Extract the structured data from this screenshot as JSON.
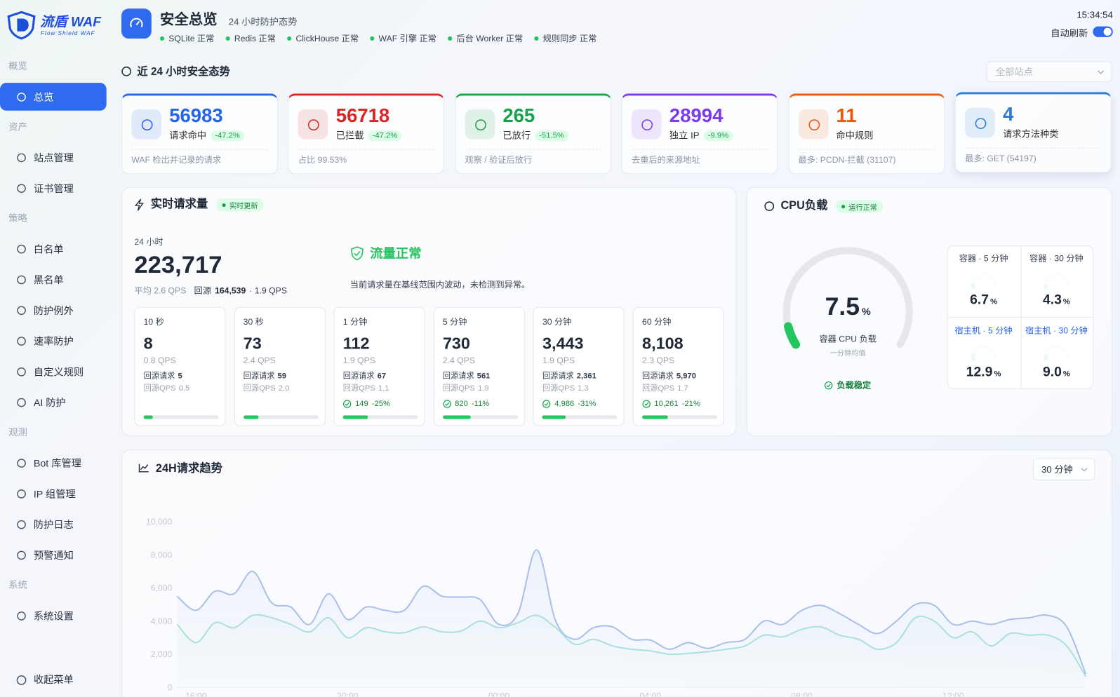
{
  "sidebar": {
    "brand": "流盾 WAF",
    "tagline": "Flow Shield WAF",
    "groups": [
      {
        "title": "概览",
        "items": [
          "总览"
        ]
      },
      {
        "title": "资产",
        "items": [
          "站点管理",
          "证书管理"
        ]
      },
      {
        "title": "策略",
        "items": [
          "白名单",
          "黑名单",
          "防护例外",
          "速率防护",
          "自定义规则",
          "AI 防护"
        ]
      },
      {
        "title": "观测",
        "items": [
          "Bot 库管理",
          "IP 组管理",
          "防护日志",
          "预警通知"
        ]
      },
      {
        "title": "系统",
        "items": [
          "系统设置"
        ]
      }
    ],
    "collapse": "收起菜单"
  },
  "header": {
    "title": "安全总览",
    "subtitle": "24 小时防护态势",
    "services": [
      "SQLite 正常",
      "Redis 正常",
      "ClickHouse 正常",
      "WAF 引擎 正常",
      "后台 Worker 正常",
      "规则同步 正常"
    ],
    "time": "15:34:54",
    "auto_refresh": "自动刷新"
  },
  "overview": {
    "title": "近 24 小时安全态势",
    "site_select": "全部站点",
    "cards": [
      {
        "value": 56983,
        "label": "请求命中",
        "change": "-47.2%",
        "note": "WAF 检出并记录的请求",
        "color": "#2563eb"
      },
      {
        "value": 56718,
        "label": "已拦截",
        "change": "-47.2%",
        "note": "占比 99.53%",
        "color": "#dc2626"
      },
      {
        "value": 265,
        "label": "已放行",
        "change": "-51.5%",
        "note": "观察 / 验证后放行",
        "color": "#16a34a"
      },
      {
        "value": 28994,
        "label": "独立 IP",
        "change": "-9.9%",
        "note": "去重后的来源地址",
        "color": "#7c3aed"
      },
      {
        "value": 11,
        "label": "命中规则",
        "note": "最多: PCDN-拦截 (31107)",
        "color": "#ea580c"
      },
      {
        "value": 4,
        "label": "请求方法种类",
        "note": "最多: GET (54197)",
        "color": "#2b7bd6"
      }
    ]
  },
  "realtime": {
    "title": "实时请求量",
    "badge": "实时更新",
    "period": "24 小时",
    "total": "223,717",
    "avg": "平均 2.6 QPS",
    "origin_label": "回源",
    "origin": "164,539",
    "origin_qps": "· 1.9 QPS",
    "status": "流量正常",
    "status_desc": "当前请求量在基线范围内波动，未检测到异常。",
    "windows": [
      {
        "label": "10 秒",
        "value": "8",
        "qps": "0.8 QPS",
        "origin_label": "回源请求",
        "origin": "5",
        "origin_qps_label": "回源QPS",
        "origin_qps": "0.5",
        "progress": 12
      },
      {
        "label": "30 秒",
        "value": "73",
        "qps": "2.4 QPS",
        "origin_label": "回源请求",
        "origin": "59",
        "origin_qps_label": "回源QPS",
        "origin_qps": "2.0",
        "progress": 20
      },
      {
        "label": "1 分钟",
        "value": "112",
        "qps": "1.9 QPS",
        "origin_label": "回源请求",
        "origin": "67",
        "origin_qps_label": "回源QPS",
        "origin_qps": "1.1",
        "ok": "149",
        "ok_change": "-25%",
        "progress": 33
      },
      {
        "label": "5 分钟",
        "value": "730",
        "qps": "2.4 QPS",
        "origin_label": "回源请求",
        "origin": "561",
        "origin_qps_label": "回源QPS",
        "origin_qps": "1.9",
        "ok": "820",
        "ok_change": "-11%",
        "progress": 37
      },
      {
        "label": "30 分钟",
        "value": "3,443",
        "qps": "1.9 QPS",
        "origin_label": "回源请求",
        "origin": "2,361",
        "origin_qps_label": "回源QPS",
        "origin_qps": "1.3",
        "ok": "4,986",
        "ok_change": "-31%",
        "progress": 31
      },
      {
        "label": "60 分钟",
        "value": "8,108",
        "qps": "2.3 QPS",
        "origin_label": "回源请求",
        "origin": "5,970",
        "origin_qps_label": "回源QPS",
        "origin_qps": "1.7",
        "ok": "10,261",
        "ok_change": "-21%",
        "progress": 34
      }
    ]
  },
  "cpu": {
    "title": "CPU负载",
    "badge": "运行正常",
    "value": 7.5,
    "unit": "%",
    "range": [
      0,
      100
    ],
    "label": "容器 CPU 负载",
    "sub": "一分钟均值",
    "status": "负载稳定",
    "cells": [
      {
        "label": "容器 · 5 分钟",
        "value": 6.7,
        "value_label": "6.7"
      },
      {
        "label": "容器 · 30 分钟",
        "value": 4.3,
        "value_label": "4.3"
      },
      {
        "label": "宿主机 · 5 分钟",
        "value": 12.9,
        "value_label": "12.9"
      },
      {
        "label": "宿主机 · 30 分钟",
        "value": 9.0,
        "value_label": "9.0"
      }
    ]
  },
  "chart_data": {
    "type": "area",
    "title": "24H请求趋势",
    "interval": "30 分钟",
    "categories": [
      null,
      "16:00",
      null,
      null,
      null,
      null,
      null,
      null,
      null,
      "20:00",
      null,
      null,
      null,
      null,
      null,
      null,
      null,
      "00:00",
      null,
      null,
      null,
      null,
      null,
      null,
      null,
      "04:00",
      null,
      null,
      null,
      null,
      null,
      null,
      null,
      "08:00",
      null,
      null,
      null,
      null,
      null,
      null,
      null,
      "12:00",
      null,
      null,
      null,
      null,
      null,
      null,
      null
    ],
    "series": [
      {
        "color": "#2f5fd0",
        "values": [
          5500,
          4650,
          5800,
          5650,
          7000,
          5100,
          4850,
          3800,
          5650,
          4100,
          4850,
          4650,
          4650,
          6100,
          5500,
          5450,
          5300,
          3800,
          4450,
          8300,
          4000,
          2900,
          3600,
          3650,
          2900,
          2850,
          2300,
          2700,
          2350,
          2700,
          2900,
          4000,
          3800,
          4650,
          4950,
          4450,
          3800,
          3250,
          4000,
          5000,
          4950,
          3800,
          4000,
          3800,
          4100,
          4200,
          4350,
          3650,
          800
        ]
      },
      {
        "color": "#2db5a0",
        "values": [
          3800,
          2700,
          3900,
          3600,
          4350,
          4200,
          3800,
          3350,
          4200,
          3000,
          3600,
          3350,
          3300,
          3650,
          3350,
          3400,
          4000,
          3600,
          3900,
          4350,
          3600,
          2600,
          2900,
          2500,
          2300,
          2200,
          2000,
          2050,
          2150,
          2300,
          2500,
          3150,
          3050,
          3500,
          3650,
          3150,
          2900,
          2300,
          2700,
          4200,
          4000,
          3000,
          3350,
          2500,
          3250,
          3150,
          3150,
          2500,
          650
        ]
      }
    ],
    "ylim": [
      0,
      10000
    ],
    "yticks": [
      0,
      {
        "value": 2000,
        "label": "2,000"
      },
      {
        "value": 4000,
        "label": "4,000"
      },
      {
        "value": 6000,
        "label": "6,000"
      },
      {
        "value": 8000,
        "label": "8,000"
      },
      {
        "value": 10000,
        "label": "10,000"
      }
    ],
    "grid": true
  }
}
